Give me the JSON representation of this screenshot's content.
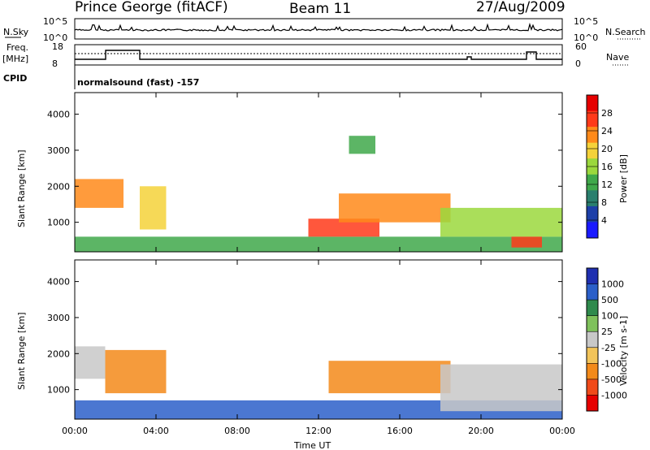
{
  "header": {
    "station": "Prince George (fitACF)",
    "beam": "Beam 11",
    "date": "27/Aug/2009"
  },
  "top_panels": {
    "nsky_label": "N.Sky",
    "nsky_ticks": [
      "10^5",
      "10^0"
    ],
    "nsearch_label": "N.Search",
    "nsearch_ticks": [
      "10^5",
      "10^0"
    ],
    "freq_label": "Freq.",
    "freq_unit": "[MHz]",
    "freq_ticks": [
      "18",
      "8"
    ],
    "nave_label": "Nave",
    "nave_ticks": [
      "60",
      "0"
    ],
    "cpid_label": "CPID",
    "cpid_text": "normalsound (fast) -157"
  },
  "colors": {
    "power_scale": [
      "#1a1aff",
      "#1d3fa8",
      "#2a7f6e",
      "#3fa84a",
      "#9bd83d",
      "#f5d23a",
      "#ff8a1a",
      "#ff3a1a",
      "#e60000"
    ],
    "velocity_scale": [
      "#1f2fb0",
      "#2b5fc9",
      "#2f8a4d",
      "#7fc15c",
      "#c8c8c8",
      "#f2c45a",
      "#f38a1a",
      "#f04a1a",
      "#e60000"
    ]
  },
  "chart_data": [
    {
      "type": "heatmap",
      "quantity": "Power",
      "ylabel": "Slant Range [km]",
      "xlabel": "",
      "colorbar_label": "Power [dB]",
      "colorbar_ticks": [
        "28",
        "24",
        "20",
        "16",
        "12",
        "8",
        "4"
      ],
      "colorbar_range": [
        0,
        30
      ],
      "ylim": [
        180,
        4600
      ],
      "yticks": [
        "4000",
        "3000",
        "2000",
        "1000"
      ],
      "xlim": [
        "00:00",
        "24:00"
      ],
      "xticks": [
        "00:00",
        "04:00",
        "08:00",
        "12:00",
        "16:00",
        "20:00",
        "00:00"
      ],
      "regions": [
        {
          "t0": 0.0,
          "t1": 2.4,
          "r0": 1400,
          "r1": 2200,
          "value": 22
        },
        {
          "t0": 3.2,
          "t1": 4.5,
          "r0": 800,
          "r1": 2000,
          "value": 18
        },
        {
          "t0": 0.0,
          "t1": 24.0,
          "r0": 180,
          "r1": 600,
          "value": 12
        },
        {
          "t0": 11.5,
          "t1": 15.0,
          "r0": 600,
          "r1": 1100,
          "value": 24
        },
        {
          "t0": 13.0,
          "t1": 18.5,
          "r0": 1000,
          "r1": 1800,
          "value": 20
        },
        {
          "t0": 18.0,
          "t1": 24.0,
          "r0": 600,
          "r1": 1400,
          "value": 14
        },
        {
          "t0": 21.5,
          "t1": 23.0,
          "r0": 300,
          "r1": 600,
          "value": 26
        },
        {
          "t0": 13.5,
          "t1": 14.8,
          "r0": 2900,
          "r1": 3400,
          "value": 10
        }
      ]
    },
    {
      "type": "heatmap",
      "quantity": "Velocity",
      "ylabel": "Slant Range [km]",
      "xlabel": "Time UT",
      "colorbar_label": "Velocity [m s-1]",
      "colorbar_ticks": [
        "1000",
        "500",
        "100",
        "25",
        "-25",
        "-100",
        "-500",
        "-1000"
      ],
      "ylim": [
        180,
        4600
      ],
      "yticks": [
        "4000",
        "3000",
        "2000",
        "1000"
      ],
      "xlim": [
        "00:00",
        "24:00"
      ],
      "xticks": [
        "00:00",
        "04:00",
        "08:00",
        "12:00",
        "16:00",
        "20:00",
        "00:00"
      ],
      "regions": [
        {
          "t0": 0.0,
          "t1": 1.5,
          "r0": 1300,
          "r1": 2200,
          "value": 0
        },
        {
          "t0": 1.5,
          "t1": 4.5,
          "r0": 900,
          "r1": 2100,
          "value": -300
        },
        {
          "t0": 0.0,
          "t1": 24.0,
          "r0": 180,
          "r1": 700,
          "value": 150
        },
        {
          "t0": 12.5,
          "t1": 18.5,
          "r0": 900,
          "r1": 1800,
          "value": -200
        },
        {
          "t0": 18.0,
          "t1": 24.0,
          "r0": 400,
          "r1": 1700,
          "value": 0
        }
      ]
    }
  ],
  "footer": {
    "xlabel": "Time UT"
  }
}
